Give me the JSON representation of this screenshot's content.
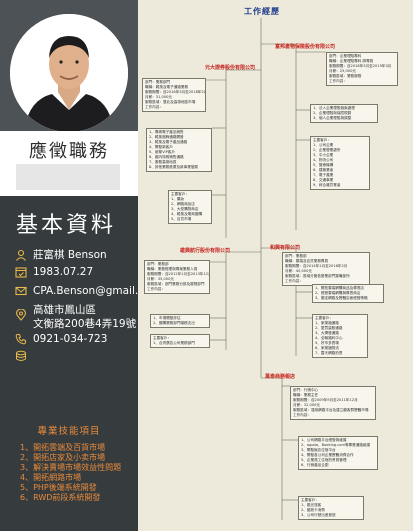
{
  "header": {
    "title": "工作經歷"
  },
  "profile": {
    "apply_title": "應徵職務",
    "basic_title": "基本資料",
    "name": "莊富棋 Benson",
    "birthday": "1983.07.27",
    "email": "CPA.Benson@gmail.com",
    "address_line1": "高雄市鳳山區",
    "address_line2": "文衡路200巷4弄19號",
    "phone": "0921-034-723"
  },
  "skills": {
    "title": "專業技能項目",
    "items": [
      "1、開拓雲端及百貨市場",
      "2、開拓店家及小卖市場",
      "3、解決賣場市場效益性問題",
      "4、開拓網路市場",
      "5、PHP後端系統開發",
      "6、RWD前段系統開發"
    ]
  },
  "companies": [
    {
      "name": "富邦產物保險股份有限公司"
    },
    {
      "name": "元大證券股份有限公司"
    },
    {
      "name": "和興有限公司"
    },
    {
      "name": "雄興航行股份有限公司"
    },
    {
      "name": "萬泰商務報店"
    }
  ],
  "nodes": {
    "fubon": [
      "部門：企業理賠專科",
      "職稱：企業理賠專科 師專員",
      "服務期間：自2018年3月至2019年3月",
      "月薪：25,000元",
      "服務區域：業務服務",
      "工作內容："
    ],
    "fubon_tasks": [
      "1、法人企業理賠個案處理",
      "2、企業理賠與保險規劃",
      "3、個人企業理賠與調整"
    ],
    "fubon_clients": [
      "主要客戶：",
      "1、公司企業",
      "2、企業營業處所",
      "3、中小企業",
      "4、物流公司",
      "5、醫療機構",
      "6、建築業者",
      "7、電子產業",
      "8、交通事業",
      "9、綜合雜貨業者"
    ],
    "yuanta": [
      "部門：業務部門",
      "職稱：韓風及電子通路業務",
      "服務期間：自2016年3月至2018年2月",
      "月薪：31,000元",
      "服務區域：雙北及高雄地區市場",
      "工作內容："
    ],
    "yuanta_tasks": [
      "1、專精電子產品銷售",
      "2、韓風服飾通路開發",
      "3、韓風及電子產品通路",
      "4、開發新客戶",
      "5、維繫VIP客戶",
      "6、國內特殊銷售通路",
      "7、服務高雄地區",
      "8、其他業務推廣及新事業發展"
    ],
    "yuanta_clients": [
      "主要客戶：",
      "1、藥妝",
      "2、網路商品店",
      "3、大型購物商店",
      "4、韓風及電商團購",
      "5、百貨市場"
    ],
    "hexing": [
      "部門：業務部",
      "職稱：雲端及百貨業務專員",
      "服務期間：自2014年1月至2016年2月",
      "月薪：40,000元",
      "服務區域：區域分管各營業部門籌備部所",
      "工作內容："
    ],
    "hexing_tasks": [
      "1、開拓雲端網購商品及專賣店",
      "2、經營雲端網購與專賣商店",
      "3、擬定網路及實體店面經營策略"
    ],
    "hexing_clients": [
      "主要客戶：",
      "1、家樂福通路",
      "2、愛買量販通路",
      "3、大潤發通路",
      "4、全聯福利中心",
      "5、好市多賣場",
      "6、家樂福物流",
      "7、露天網路拍賣"
    ],
    "xiongxing": [
      "部門：業務部",
      "職稱：業務經理與專案業務人員",
      "服務期間：自2012年1月至2013年12月",
      "月薪：35,000元",
      "服務區域：部門業務分部及展覽部門",
      "工作內容："
    ],
    "xiongxing_tasks": [
      "1、市場開發評估",
      "2、團購業務部門總務支出"
    ],
    "xiongxing_clients": [
      "主要客戶：",
      "1、合資廣告公司業務部門"
    ],
    "wantai": [
      "部門：行銷中心",
      "職稱：業務主任",
      "服務期間：自2009年9月至2011年12月",
      "月薪：32,000元",
      "服務區域：運用網路平台及建立顧客群實體市場",
      "工作內容："
    ],
    "wantai_tasks": [
      "1、公司網路平台經營與維護",
      "2、agoda、Booking.com等專業通路維護",
      "3、開發飯店住宿平台",
      "4、開發各公司企業實體消費合作",
      "5、企業員工住宿的會員管理",
      "6、行銷產品企劃"
    ],
    "wantai_clients": [
      "主要客戶：",
      "1、觀光旅客",
      "2、國旅卡消費",
      "3、公司行號出差差旅"
    ]
  }
}
